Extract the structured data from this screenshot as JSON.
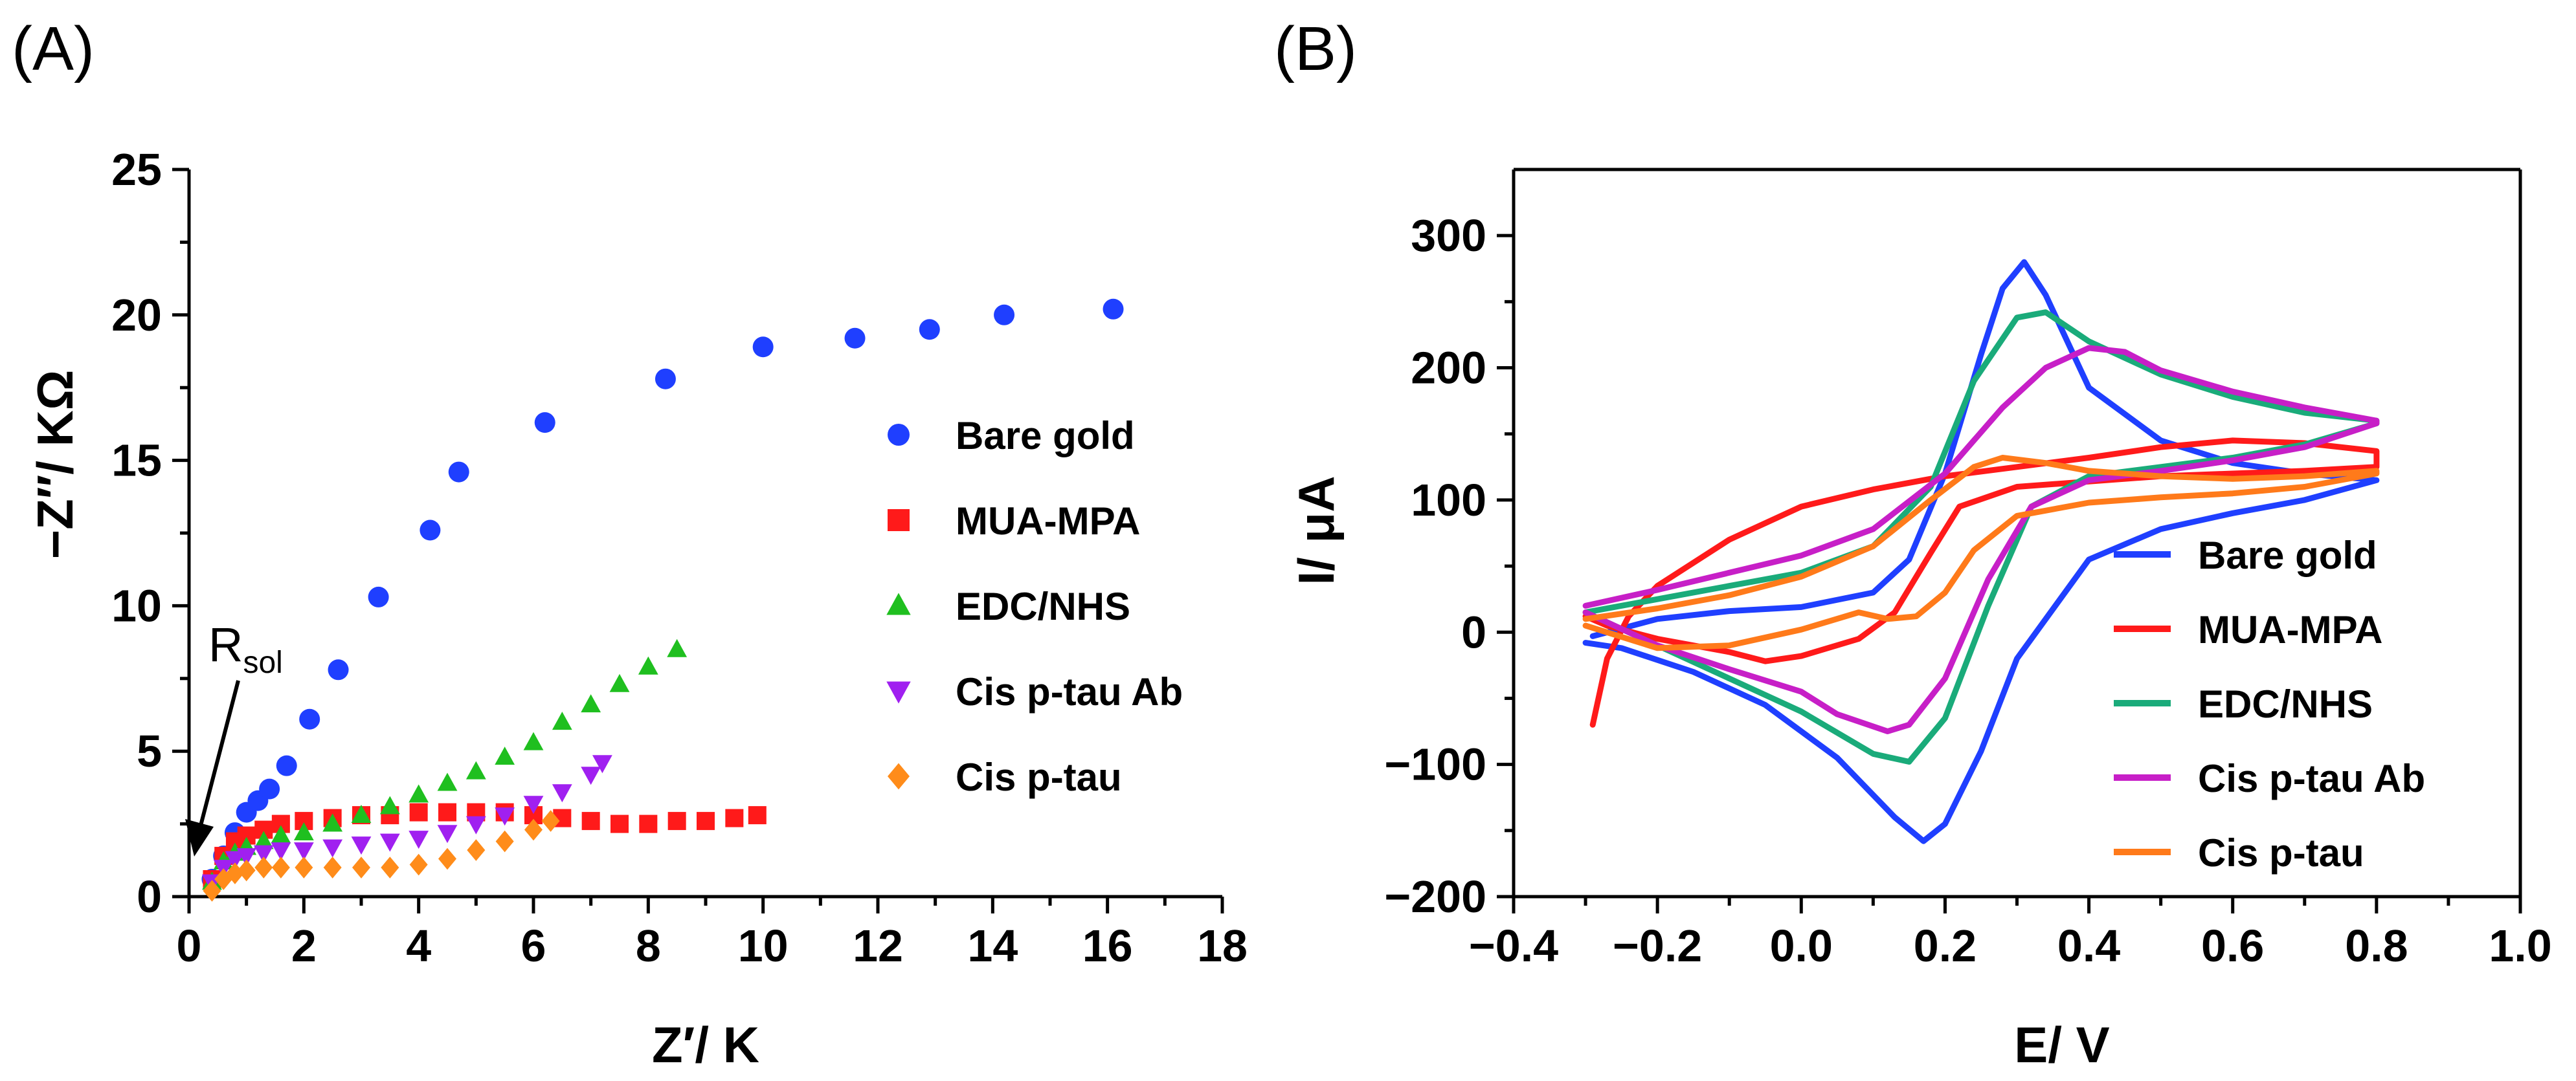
{
  "chart_data": [
    {
      "panel": "(A)",
      "type": "scatter",
      "title": "",
      "xlabel": "Z′/ K",
      "ylabel": "−Z′′/ KΩ",
      "xlim": [
        0,
        18
      ],
      "ylim": [
        0,
        25
      ],
      "xticks": [
        0,
        2,
        4,
        6,
        8,
        10,
        12,
        14,
        16,
        18
      ],
      "yticks": [
        0,
        5,
        10,
        15,
        20,
        25
      ],
      "grid": false,
      "legend_position": "right",
      "annotation": {
        "text": "R",
        "subscript": "sol",
        "points_to": [
          0.2,
          1.3
        ]
      },
      "series": [
        {
          "name": "Bare gold",
          "marker": "circle",
          "color": "#1f3fff",
          "points": [
            [
              0.4,
              0.6
            ],
            [
              0.6,
              1.4
            ],
            [
              0.8,
              2.2
            ],
            [
              1.0,
              2.9
            ],
            [
              1.2,
              3.3
            ],
            [
              1.4,
              3.7
            ],
            [
              1.7,
              4.5
            ],
            [
              2.1,
              6.1
            ],
            [
              2.6,
              7.8
            ],
            [
              3.3,
              10.3
            ],
            [
              4.2,
              12.6
            ],
            [
              4.7,
              14.6
            ],
            [
              6.2,
              16.3
            ],
            [
              8.3,
              17.8
            ],
            [
              10.0,
              18.9
            ],
            [
              11.6,
              19.2
            ],
            [
              12.9,
              19.5
            ],
            [
              14.2,
              20.0
            ],
            [
              16.1,
              20.2
            ]
          ]
        },
        {
          "name": "MUA-MPA",
          "marker": "square",
          "color": "#ff1a1a",
          "points": [
            [
              0.4,
              0.6
            ],
            [
              0.6,
              1.4
            ],
            [
              0.8,
              1.9
            ],
            [
              1.0,
              2.1
            ],
            [
              1.3,
              2.3
            ],
            [
              1.6,
              2.5
            ],
            [
              2.0,
              2.6
            ],
            [
              2.5,
              2.7
            ],
            [
              3.0,
              2.8
            ],
            [
              3.5,
              2.8
            ],
            [
              4.0,
              2.9
            ],
            [
              4.5,
              2.9
            ],
            [
              5.0,
              2.9
            ],
            [
              5.5,
              2.9
            ],
            [
              6.0,
              2.8
            ],
            [
              6.5,
              2.7
            ],
            [
              7.0,
              2.6
            ],
            [
              7.5,
              2.5
            ],
            [
              8.0,
              2.5
            ],
            [
              8.5,
              2.6
            ],
            [
              9.0,
              2.6
            ],
            [
              9.5,
              2.7
            ],
            [
              9.9,
              2.8
            ]
          ]
        },
        {
          "name": "EDC/NHS",
          "marker": "triangle-up",
          "color": "#1fbf1f",
          "points": [
            [
              0.4,
              0.5
            ],
            [
              0.6,
              1.2
            ],
            [
              0.8,
              1.5
            ],
            [
              1.0,
              1.7
            ],
            [
              1.3,
              1.9
            ],
            [
              1.6,
              2.1
            ],
            [
              2.0,
              2.2
            ],
            [
              2.5,
              2.5
            ],
            [
              3.0,
              2.8
            ],
            [
              3.5,
              3.1
            ],
            [
              4.0,
              3.5
            ],
            [
              4.5,
              3.9
            ],
            [
              5.0,
              4.3
            ],
            [
              5.5,
              4.8
            ],
            [
              6.0,
              5.3
            ],
            [
              6.5,
              6.0
            ],
            [
              7.0,
              6.6
            ],
            [
              7.5,
              7.3
            ],
            [
              8.0,
              7.9
            ],
            [
              8.5,
              8.5
            ]
          ]
        },
        {
          "name": "Cis p-tau Ab",
          "marker": "triangle-down",
          "color": "#a020f0",
          "points": [
            [
              0.4,
              0.5
            ],
            [
              0.6,
              1.0
            ],
            [
              0.8,
              1.3
            ],
            [
              1.0,
              1.4
            ],
            [
              1.3,
              1.5
            ],
            [
              1.6,
              1.6
            ],
            [
              2.0,
              1.6
            ],
            [
              2.5,
              1.7
            ],
            [
              3.0,
              1.8
            ],
            [
              3.5,
              1.9
            ],
            [
              4.0,
              2.0
            ],
            [
              4.5,
              2.2
            ],
            [
              5.0,
              2.5
            ],
            [
              5.5,
              2.8
            ],
            [
              6.0,
              3.2
            ],
            [
              6.5,
              3.6
            ],
            [
              7.0,
              4.2
            ],
            [
              7.2,
              4.6
            ]
          ]
        },
        {
          "name": "Cis p-tau",
          "marker": "diamond",
          "color": "#ff8c1a",
          "points": [
            [
              0.4,
              0.2
            ],
            [
              0.6,
              0.6
            ],
            [
              0.8,
              0.8
            ],
            [
              1.0,
              0.9
            ],
            [
              1.3,
              1.0
            ],
            [
              1.6,
              1.0
            ],
            [
              2.0,
              1.0
            ],
            [
              2.5,
              1.0
            ],
            [
              3.0,
              1.0
            ],
            [
              3.5,
              1.0
            ],
            [
              4.0,
              1.1
            ],
            [
              4.5,
              1.3
            ],
            [
              5.0,
              1.6
            ],
            [
              5.5,
              1.9
            ],
            [
              6.0,
              2.3
            ],
            [
              6.3,
              2.6
            ]
          ]
        }
      ]
    },
    {
      "panel": "(B)",
      "type": "line",
      "title": "",
      "xlabel": "E/ V",
      "ylabel": "I/ μA",
      "xlim": [
        -0.4,
        1.0
      ],
      "ylim": [
        -200,
        350
      ],
      "xticks": [
        -0.4,
        -0.2,
        0.0,
        0.2,
        0.4,
        0.6,
        0.8,
        1.0
      ],
      "xtick_labels": [
        "−0.4",
        "−0.2",
        "0.0",
        "0.2",
        "0.4",
        "0.6",
        "0.8",
        "1.0"
      ],
      "yticks": [
        -200,
        -100,
        0,
        100,
        200,
        300
      ],
      "ytick_labels": [
        "−200",
        "−100",
        "0",
        "100",
        "200",
        "300"
      ],
      "grid": false,
      "legend_position": "bottom-right",
      "series": [
        {
          "name": "Bare gold",
          "color": "#1f3fff",
          "points": [
            [
              -0.29,
              -3
            ],
            [
              -0.2,
              10
            ],
            [
              -0.1,
              16
            ],
            [
              0.0,
              19
            ],
            [
              0.1,
              30
            ],
            [
              0.15,
              55
            ],
            [
              0.2,
              120
            ],
            [
              0.25,
              210
            ],
            [
              0.28,
              260
            ],
            [
              0.31,
              280
            ],
            [
              0.34,
              255
            ],
            [
              0.4,
              185
            ],
            [
              0.5,
              145
            ],
            [
              0.6,
              128
            ],
            [
              0.7,
              120
            ],
            [
              0.8,
              115
            ],
            [
              0.8,
              115
            ],
            [
              0.7,
              100
            ],
            [
              0.6,
              90
            ],
            [
              0.5,
              78
            ],
            [
              0.4,
              55
            ],
            [
              0.3,
              -20
            ],
            [
              0.25,
              -90
            ],
            [
              0.2,
              -145
            ],
            [
              0.17,
              -158
            ],
            [
              0.13,
              -140
            ],
            [
              0.05,
              -95
            ],
            [
              -0.05,
              -55
            ],
            [
              -0.15,
              -30
            ],
            [
              -0.25,
              -12
            ],
            [
              -0.3,
              -8
            ]
          ]
        },
        {
          "name": "MUA-MPA",
          "color": "#ff1a1a",
          "points": [
            [
              -0.29,
              -70
            ],
            [
              -0.27,
              -20
            ],
            [
              -0.24,
              12
            ],
            [
              -0.2,
              35
            ],
            [
              -0.1,
              70
            ],
            [
              0.0,
              95
            ],
            [
              0.1,
              108
            ],
            [
              0.2,
              118
            ],
            [
              0.3,
              125
            ],
            [
              0.4,
              132
            ],
            [
              0.5,
              140
            ],
            [
              0.6,
              145
            ],
            [
              0.7,
              143
            ],
            [
              0.8,
              137
            ],
            [
              0.8,
              125
            ],
            [
              0.7,
              122
            ],
            [
              0.6,
              120
            ],
            [
              0.5,
              118
            ],
            [
              0.4,
              114
            ],
            [
              0.3,
              110
            ],
            [
              0.22,
              95
            ],
            [
              0.18,
              60
            ],
            [
              0.13,
              15
            ],
            [
              0.08,
              -5
            ],
            [
              0.0,
              -18
            ],
            [
              -0.05,
              -22
            ],
            [
              -0.1,
              -15
            ],
            [
              -0.2,
              -5
            ],
            [
              -0.27,
              5
            ],
            [
              -0.3,
              12
            ]
          ]
        },
        {
          "name": "EDC/NHS",
          "color": "#1aab7a",
          "points": [
            [
              -0.3,
              15
            ],
            [
              -0.2,
              25
            ],
            [
              -0.1,
              35
            ],
            [
              0.0,
              45
            ],
            [
              0.1,
              65
            ],
            [
              0.18,
              110
            ],
            [
              0.24,
              190
            ],
            [
              0.3,
              238
            ],
            [
              0.34,
              242
            ],
            [
              0.4,
              220
            ],
            [
              0.5,
              195
            ],
            [
              0.6,
              178
            ],
            [
              0.7,
              166
            ],
            [
              0.8,
              160
            ],
            [
              0.8,
              158
            ],
            [
              0.7,
              142
            ],
            [
              0.6,
              132
            ],
            [
              0.5,
              125
            ],
            [
              0.4,
              118
            ],
            [
              0.32,
              95
            ],
            [
              0.26,
              20
            ],
            [
              0.2,
              -65
            ],
            [
              0.15,
              -98
            ],
            [
              0.1,
              -92
            ],
            [
              0.0,
              -60
            ],
            [
              -0.1,
              -35
            ],
            [
              -0.2,
              -10
            ],
            [
              -0.3,
              15
            ]
          ]
        },
        {
          "name": "Cis p-tau Ab",
          "color": "#c71fc7",
          "points": [
            [
              -0.3,
              20
            ],
            [
              -0.2,
              32
            ],
            [
              -0.1,
              45
            ],
            [
              0.0,
              58
            ],
            [
              0.1,
              78
            ],
            [
              0.2,
              120
            ],
            [
              0.28,
              170
            ],
            [
              0.34,
              200
            ],
            [
              0.4,
              215
            ],
            [
              0.45,
              212
            ],
            [
              0.5,
              198
            ],
            [
              0.6,
              182
            ],
            [
              0.7,
              170
            ],
            [
              0.8,
              160
            ],
            [
              0.8,
              158
            ],
            [
              0.7,
              140
            ],
            [
              0.6,
              130
            ],
            [
              0.5,
              122
            ],
            [
              0.4,
              115
            ],
            [
              0.32,
              95
            ],
            [
              0.26,
              40
            ],
            [
              0.2,
              -35
            ],
            [
              0.15,
              -70
            ],
            [
              0.12,
              -75
            ],
            [
              0.05,
              -62
            ],
            [
              0.0,
              -45
            ],
            [
              -0.1,
              -28
            ],
            [
              -0.2,
              -10
            ],
            [
              -0.3,
              15
            ]
          ]
        },
        {
          "name": "Cis p-tau",
          "color": "#ff7a1a",
          "points": [
            [
              -0.3,
              10
            ],
            [
              -0.2,
              18
            ],
            [
              -0.1,
              28
            ],
            [
              0.0,
              42
            ],
            [
              0.1,
              65
            ],
            [
              0.18,
              100
            ],
            [
              0.24,
              125
            ],
            [
              0.28,
              132
            ],
            [
              0.34,
              128
            ],
            [
              0.4,
              122
            ],
            [
              0.5,
              118
            ],
            [
              0.6,
              116
            ],
            [
              0.7,
              118
            ],
            [
              0.8,
              122
            ],
            [
              0.8,
              120
            ],
            [
              0.7,
              110
            ],
            [
              0.6,
              105
            ],
            [
              0.5,
              102
            ],
            [
              0.4,
              98
            ],
            [
              0.3,
              88
            ],
            [
              0.24,
              62
            ],
            [
              0.2,
              30
            ],
            [
              0.16,
              12
            ],
            [
              0.12,
              10
            ],
            [
              0.08,
              15
            ],
            [
              0.0,
              2
            ],
            [
              -0.1,
              -10
            ],
            [
              -0.2,
              -12
            ],
            [
              -0.3,
              5
            ]
          ]
        }
      ]
    }
  ]
}
